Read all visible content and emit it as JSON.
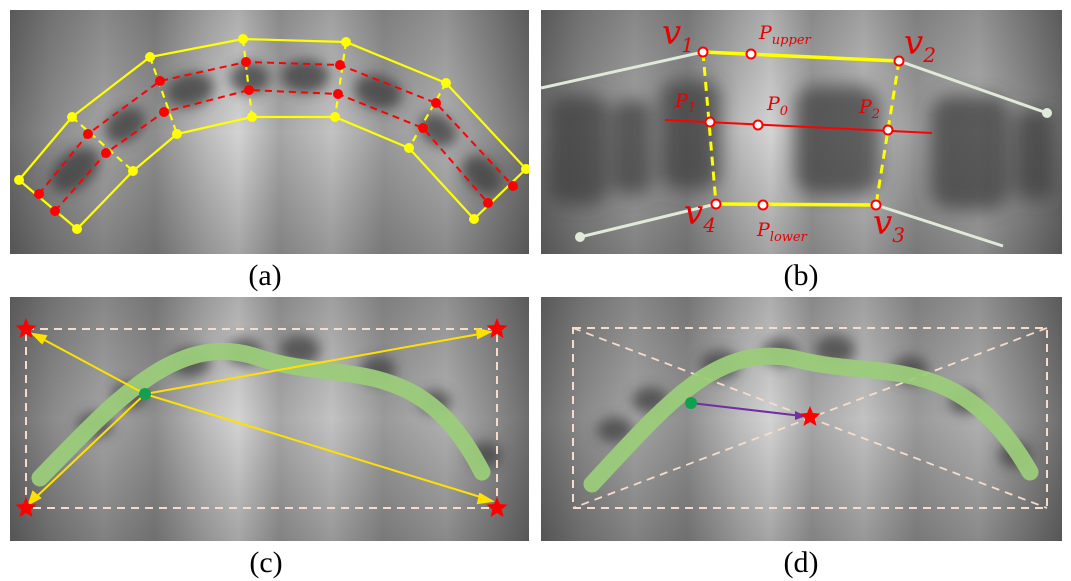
{
  "captions": [
    "(a)",
    "(b)",
    "(c)",
    "(d)"
  ],
  "panel_b": {
    "v1": {
      "main": "v",
      "sub": "1"
    },
    "v2": {
      "main": "v",
      "sub": "2"
    },
    "v3": {
      "main": "v",
      "sub": "3"
    },
    "v4": {
      "main": "v",
      "sub": "4"
    },
    "p_upper": {
      "main": "P",
      "sub": "upper"
    },
    "p_lower": {
      "main": "P",
      "sub": "lower"
    },
    "p0": {
      "main": "P",
      "sub": "0"
    },
    "p1": {
      "main": "P",
      "sub": "1"
    },
    "p2": {
      "main": "P",
      "sub": "2"
    }
  },
  "colors": {
    "boundary": "#ffff00",
    "centerline": "#ff0000",
    "arch_curve": "#9ccc7a",
    "green_point": "#10a050",
    "star": "#ff0000",
    "box": "#f7dccb",
    "arrow_yellow": "#ffe000",
    "arrow_purple": "#7030a0",
    "adjacent_line": "#e0ead8"
  }
}
